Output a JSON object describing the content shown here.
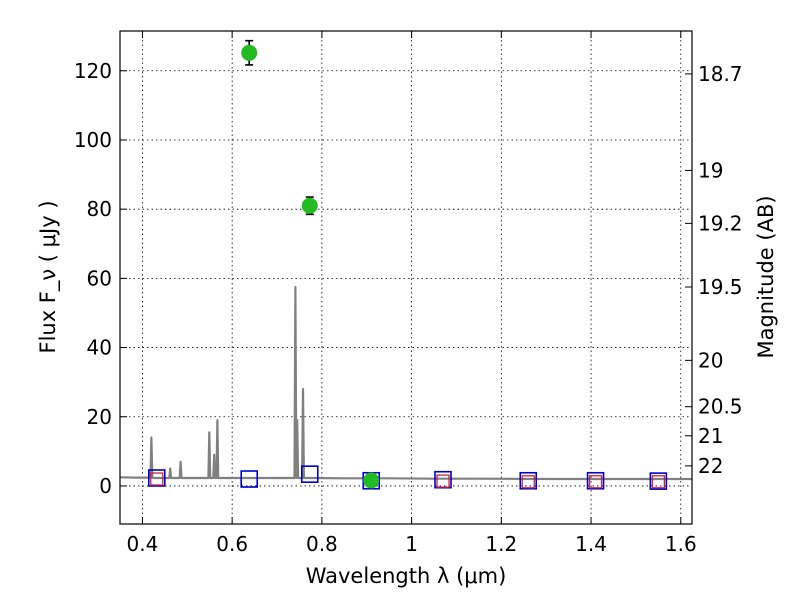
{
  "chart_data": {
    "type": "scatter",
    "title": "",
    "xlabel": "Wavelength λ (μm)",
    "ylabel": "Flux F_ν ( μJy )",
    "y2label": "Magnitude (AB)",
    "xlim": [
      0.35,
      1.625
    ],
    "ylim": [
      -11,
      131.5
    ],
    "xticks": [
      0.4,
      0.6,
      0.8,
      1.0,
      1.2,
      1.4,
      1.6
    ],
    "xtick_labels": [
      "0.4",
      "0.6",
      "0.8",
      "1",
      "1.2",
      "1.4",
      "1.6"
    ],
    "yticks": [
      0,
      20,
      40,
      60,
      80,
      100,
      120
    ],
    "ytick_labels": [
      "0",
      "20",
      "40",
      "60",
      "80",
      "100",
      "120"
    ],
    "y2ticks": [
      {
        "label": "18.7",
        "flux": 119.1
      },
      {
        "label": "19",
        "flux": 91.2
      },
      {
        "label": "19.2",
        "flux": 75.9
      },
      {
        "label": "19.5",
        "flux": 57.5
      },
      {
        "label": "20",
        "flux": 36.3
      },
      {
        "label": "20.5",
        "flux": 22.9
      },
      {
        "label": "21",
        "flux": 14.5
      },
      {
        "label": "22",
        "flux": 5.8
      }
    ],
    "grid": true,
    "colors": {
      "spectrum": "#808080",
      "observed": "#22bb22",
      "model_blue": "#0000cc",
      "model_red": "#cc2244",
      "errorbar": "#000000"
    },
    "series": [
      {
        "kind": "spectrum",
        "x": [
          0.35,
          0.38,
          0.41,
          0.418,
          0.42,
          0.422,
          0.43,
          0.45,
          0.46,
          0.462,
          0.464,
          0.47,
          0.483,
          0.485,
          0.487,
          0.5,
          0.52,
          0.54,
          0.547,
          0.549,
          0.551,
          0.555,
          0.558,
          0.56,
          0.562,
          0.565,
          0.567,
          0.569,
          0.58,
          0.62,
          0.66,
          0.7,
          0.735,
          0.739,
          0.741,
          0.743,
          0.745,
          0.747,
          0.749,
          0.752,
          0.756,
          0.758,
          0.76,
          0.763,
          0.78,
          0.85,
          0.95,
          1.05,
          1.15,
          1.3,
          1.45,
          1.625
        ],
        "y": [
          2.5,
          2.4,
          2.4,
          2.4,
          14,
          2.4,
          2.3,
          2.3,
          2.3,
          5,
          2.3,
          2.3,
          2.3,
          7,
          2.3,
          2.3,
          2.3,
          2.3,
          2.3,
          15.5,
          2.3,
          2.3,
          2.3,
          9,
          2.3,
          2.3,
          19,
          2.3,
          2.3,
          2.3,
          2.3,
          2.3,
          2.3,
          2.3,
          57.5,
          2.3,
          19,
          2.3,
          2.3,
          2.3,
          2.3,
          28,
          2.3,
          2.3,
          2.3,
          2.2,
          2.2,
          2.1,
          2.1,
          2.0,
          2.0,
          2.0
        ]
      },
      {
        "kind": "observed",
        "x": [
          0.638,
          0.773,
          0.91
        ],
        "y": [
          125.2,
          81.0,
          1.6
        ],
        "yerr": [
          3.5,
          2.5,
          0.8
        ]
      },
      {
        "kind": "model_blue",
        "x": [
          0.432,
          0.638,
          0.773,
          0.91,
          1.07,
          1.26,
          1.41,
          1.55
        ],
        "y": [
          2.3,
          2.0,
          3.4,
          1.5,
          1.8,
          1.5,
          1.5,
          1.4
        ]
      },
      {
        "kind": "model_red",
        "x": [
          0.432,
          1.07,
          1.26,
          1.41,
          1.55
        ],
        "y": [
          2.0,
          1.4,
          1.2,
          1.2,
          1.2
        ]
      }
    ]
  }
}
